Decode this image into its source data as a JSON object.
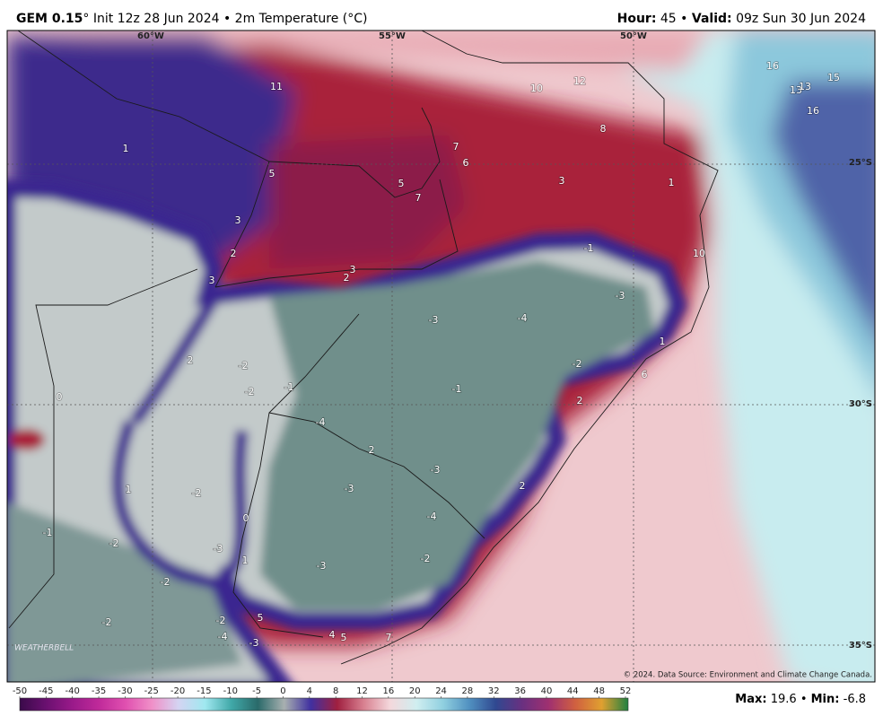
{
  "header": {
    "model": "GEM 0.15",
    "rest": "° Init 12z 28 Jun 2024 • 2m Temperature (°C)",
    "hour_label": "Hour:",
    "hour": 45,
    "sep": "•",
    "valid_label": "Valid:",
    "valid": "09z Sun 30 Jun 2024"
  },
  "map": {
    "lon_labels": [
      "60°W",
      "55°W",
      "50°W"
    ],
    "lat_labels": [
      "25°S",
      "30°S",
      "35°S"
    ],
    "point_labels": [
      11,
      10,
      12,
      16,
      15,
      13,
      13,
      16,
      1,
      7,
      6,
      8,
      5,
      5,
      7,
      3,
      1,
      3,
      2,
      3,
      2,
      3,
      -1,
      10,
      -3,
      -3,
      -4,
      1,
      2,
      -2,
      -2,
      6,
      -2,
      -1,
      -1,
      0,
      2,
      -4,
      2,
      -3,
      1,
      -2,
      -3,
      2,
      0,
      -4,
      -1,
      -2,
      -3,
      1,
      -3,
      -2,
      -2,
      -2,
      -2,
      5,
      -4,
      -3,
      4,
      5,
      7
    ],
    "logo": "WEATHERBELL",
    "credit": "© 2024. Data Source: Environment and Climate Change Canada."
  },
  "colorbar": {
    "ticks": [
      -50,
      -45,
      -40,
      -35,
      -30,
      -25,
      -20,
      -15,
      -10,
      -5,
      0,
      4,
      8,
      12,
      16,
      20,
      24,
      28,
      32,
      36,
      40,
      44,
      48,
      52
    ]
  },
  "stats": {
    "max_label": "Max:",
    "max": 19.6,
    "sep": "•",
    "min_label": "Min:",
    "min": -6.8
  }
}
